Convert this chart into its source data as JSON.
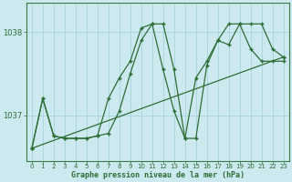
{
  "xlabel": "Graphe pression niveau de la mer (hPa)",
  "background_color": "#cce9f0",
  "grid_color": "#a8d4dd",
  "line_color": "#2d6e35",
  "xlim": [
    -0.5,
    23.5
  ],
  "ylim": [
    1036.45,
    1038.35
  ],
  "yticks": [
    1037,
    1038
  ],
  "xticks": [
    0,
    1,
    2,
    3,
    4,
    5,
    6,
    7,
    8,
    9,
    10,
    11,
    12,
    13,
    14,
    15,
    16,
    17,
    18,
    19,
    20,
    21,
    22,
    23
  ],
  "series1_x": [
    0,
    1,
    2,
    3,
    4,
    5,
    6,
    7,
    8,
    9,
    10,
    11,
    12,
    13,
    14,
    15,
    16,
    17,
    18,
    19,
    20,
    21,
    22,
    23
  ],
  "series1_y": [
    1036.6,
    1037.2,
    1036.75,
    1036.72,
    1036.72,
    1036.72,
    1036.75,
    1036.78,
    1037.05,
    1037.5,
    1037.9,
    1038.1,
    1038.1,
    1037.55,
    1036.72,
    1036.72,
    1037.6,
    1037.9,
    1037.85,
    1038.1,
    1038.1,
    1038.1,
    1037.8,
    1037.7
  ],
  "series2_x": [
    0,
    1,
    2,
    3,
    4,
    5,
    6,
    7,
    8,
    9,
    10,
    11,
    12,
    13,
    14,
    15,
    16,
    17,
    18,
    19,
    20,
    21,
    22,
    23
  ],
  "series2_y": [
    1036.6,
    1037.2,
    1036.75,
    1036.72,
    1036.72,
    1036.72,
    1036.75,
    1037.2,
    1037.45,
    1037.65,
    1038.05,
    1038.1,
    1037.55,
    1037.05,
    1036.72,
    1037.45,
    1037.65,
    1037.9,
    1038.1,
    1038.1,
    1037.8,
    1037.65,
    1037.65,
    1037.65
  ],
  "series3_x": [
    0,
    23
  ],
  "series3_y": [
    1036.6,
    1037.7
  ]
}
